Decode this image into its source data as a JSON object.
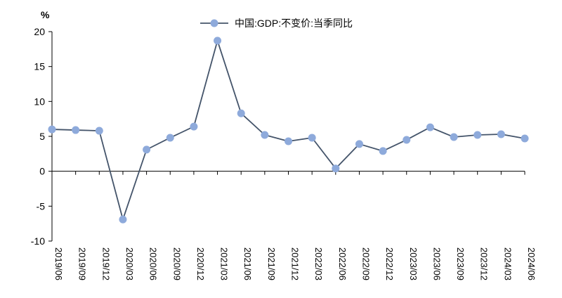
{
  "chart_data": {
    "type": "line",
    "title": "",
    "xlabel": "",
    "ylabel": "",
    "unit": "%",
    "ylim": [
      -10,
      20
    ],
    "yticks": [
      20,
      15,
      10,
      5,
      0,
      -5,
      -10
    ],
    "grid": false,
    "legend_position": "top-center",
    "categories": [
      "2019/06",
      "2019/09",
      "2019/12",
      "2020/03",
      "2020/06",
      "2020/09",
      "2020/12",
      "2021/03",
      "2021/06",
      "2021/09",
      "2021/12",
      "2022/03",
      "2022/06",
      "2022/09",
      "2022/12",
      "2023/03",
      "2023/06",
      "2023/09",
      "2023/12",
      "2024/03",
      "2024/06"
    ],
    "series": [
      {
        "name": "中国:GDP:不变价:当季同比",
        "values": [
          6.0,
          5.9,
          5.8,
          -6.9,
          3.1,
          4.8,
          6.4,
          18.7,
          8.3,
          5.2,
          4.3,
          4.8,
          0.4,
          3.9,
          2.9,
          4.5,
          6.3,
          4.9,
          5.2,
          5.3,
          4.7
        ],
        "line_color": "#44546a",
        "marker_color": "#8eaadb"
      }
    ]
  }
}
